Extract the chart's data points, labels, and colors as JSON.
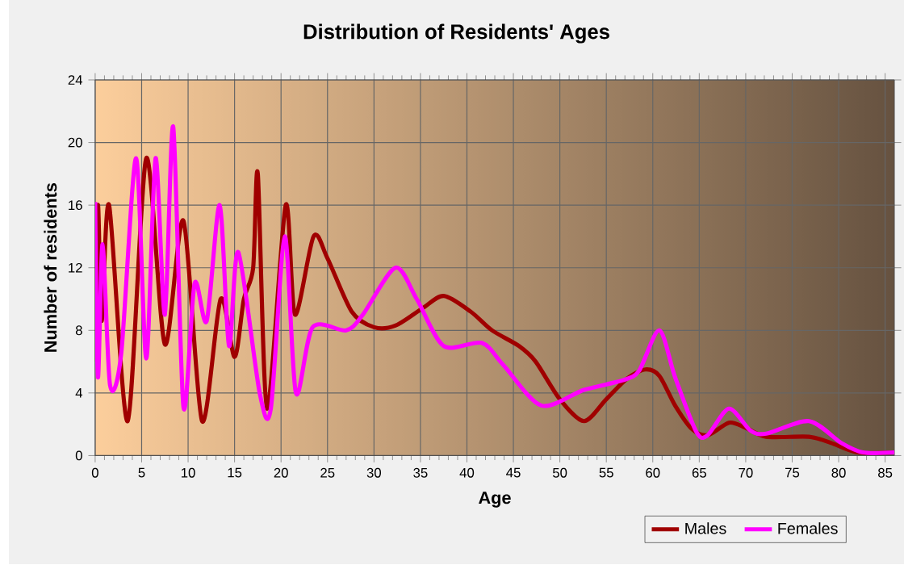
{
  "chart_data": {
    "type": "line",
    "title": "Distribution of Residents' Ages",
    "xlabel": "Age",
    "ylabel": "Number of residents",
    "xlim": [
      0,
      86
    ],
    "ylim": [
      0,
      24
    ],
    "xticks": [
      0,
      5,
      10,
      15,
      20,
      25,
      30,
      35,
      40,
      45,
      50,
      55,
      60,
      65,
      70,
      75,
      80,
      85
    ],
    "yticks": [
      0,
      4,
      8,
      12,
      16,
      20,
      24
    ],
    "grid": true,
    "legend": "bottom",
    "series": [
      {
        "name": "Males",
        "color": "#a00000",
        "x": [
          0,
          0.3,
          0.7,
          1.5,
          3.5,
          5.5,
          7.5,
          9.5,
          11.5,
          13.5,
          15,
          16,
          17,
          17.5,
          18.5,
          20.5,
          21.5,
          23.5,
          25,
          27.6,
          30,
          32.3,
          35.2,
          37.5,
          40.4,
          42.7,
          45.6,
          47.4,
          50,
          52.6,
          55,
          57.2,
          59.2,
          60.7,
          62.4,
          64.2,
          65.9,
          68.2,
          69.9,
          72.2,
          76.8,
          79.2,
          82,
          86
        ],
        "values": [
          6,
          16,
          8.6,
          16,
          2.2,
          19,
          7.1,
          15,
          2.2,
          10,
          6.3,
          10,
          12,
          18,
          3,
          16,
          9,
          14,
          12.6,
          9.2,
          8.2,
          8.3,
          9.4,
          10.2,
          9.2,
          8,
          7,
          6,
          3.6,
          2.2,
          3.6,
          4.9,
          5.5,
          5.1,
          3.2,
          1.7,
          1.3,
          2.1,
          1.8,
          1.2,
          1.2,
          0.8,
          0.2,
          0.2
        ]
      },
      {
        "name": "Females",
        "color": "#ff00ff",
        "x": [
          0,
          0.3,
          0.8,
          1.6,
          2.8,
          4.4,
          5.5,
          6.5,
          7.5,
          8.4,
          9.5,
          10.7,
          12,
          13.4,
          14.4,
          15.4,
          17.7,
          18.9,
          20.4,
          21.6,
          23.4,
          27,
          28.8,
          32.3,
          34.6,
          37.5,
          41.6,
          43.9,
          48,
          52.6,
          56.7,
          58.5,
          60.7,
          62.4,
          64.7,
          65.9,
          68.2,
          70.5,
          72.2,
          76.8,
          80.3,
          82.6,
          86
        ],
        "values": [
          16.2,
          5,
          13.5,
          4.5,
          6.5,
          19,
          6.2,
          19,
          9,
          21,
          3.1,
          11,
          8.6,
          16,
          7,
          13,
          4,
          3,
          14,
          4,
          8.2,
          8,
          9,
          12,
          10,
          7,
          7.2,
          5.8,
          3.2,
          4.2,
          4.8,
          5.4,
          8,
          5,
          1.5,
          1.3,
          3,
          1.6,
          1.4,
          2.2,
          0.8,
          0.2,
          0.2
        ]
      }
    ]
  }
}
